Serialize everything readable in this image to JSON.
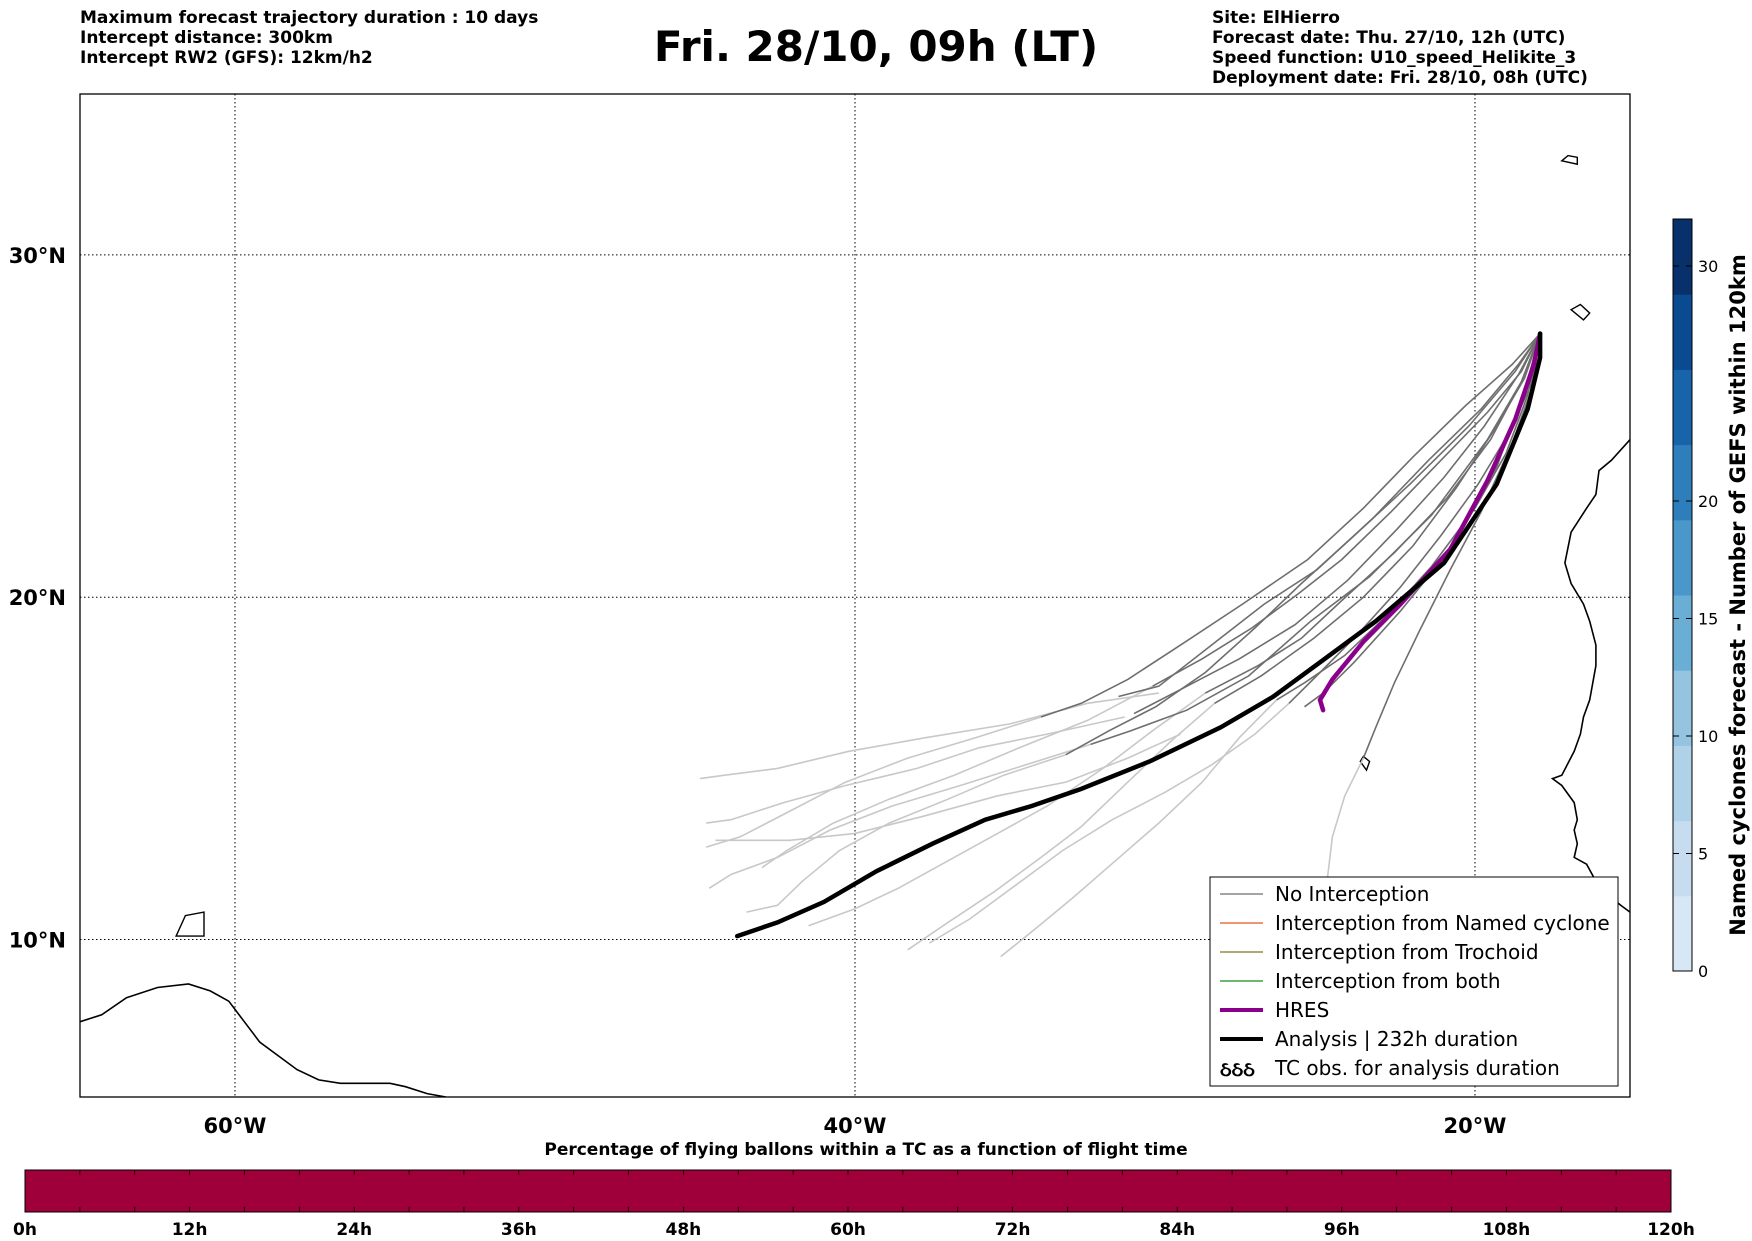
{
  "header": {
    "left_lines": [
      "Maximum forecast trajectory duration : 10 days",
      "Intercept distance: 300km",
      "Intercept RW2 (GFS):  12km/h2"
    ],
    "title": "Fri. 28/10, 09h (LT)",
    "right_lines": [
      "Site: ElHierro",
      "Forecast date: Thu. 27/10, 12h (UTC)",
      "Speed function: U10_speed_Helikite_3",
      "Deployment date: Fri. 28/10, 08h (UTC)"
    ]
  },
  "map": {
    "lon_range": [
      -65,
      -15
    ],
    "lat_range": [
      5.4,
      34.7
    ],
    "lat_ticks": [
      {
        "value": 30,
        "label": "30°N"
      },
      {
        "value": 20,
        "label": "20°N"
      },
      {
        "value": 10,
        "label": "10°N"
      }
    ],
    "lon_ticks": [
      {
        "value": -60,
        "label": "60°W"
      },
      {
        "value": -40,
        "label": "40°W"
      },
      {
        "value": -20,
        "label": "20°W"
      }
    ],
    "grid": true
  },
  "legend": {
    "placement": "bottom-right",
    "items": [
      {
        "label": "No Interception",
        "color": "#6e6e6e",
        "style": "thin"
      },
      {
        "label": "Interception from Named cyclone",
        "color": "#e8561c",
        "style": "thin"
      },
      {
        "label": "Interception from Trochoid",
        "color": "#7b7a1a",
        "style": "thin"
      },
      {
        "label": "Interception from both",
        "color": "#1a8a1a",
        "style": "thin"
      },
      {
        "label": "HRES",
        "color": "#8b008b",
        "style": "thick"
      },
      {
        "label": "Analysis | 232h duration",
        "color": "#000000",
        "style": "thick"
      },
      {
        "label": "TC obs. for analysis duration",
        "color": "#000000",
        "style": "symbol"
      }
    ],
    "symbol_glyph": "ઠઠઠ"
  },
  "colorbar": {
    "label": "Named cyclones forecast - Number of GEFS within 120km",
    "min": 0,
    "max": 32,
    "ticks": [
      0,
      5,
      10,
      15,
      20,
      30
    ],
    "colors": [
      "#d8e7f5",
      "#c7dcef",
      "#b0d2e8",
      "#94c4df",
      "#6aaed6",
      "#4a98c9",
      "#2e7ebc",
      "#1764ab",
      "#0a4a90",
      "#08306b"
    ]
  },
  "flight_bar": {
    "title": "Percentage of flying ballons within a TC as a function of flight time",
    "color": "#a0003a",
    "ticks": [
      "0h",
      "12h",
      "24h",
      "36h",
      "48h",
      "60h",
      "72h",
      "84h",
      "96h",
      "108h",
      "120h"
    ]
  },
  "trajectories": {
    "origin": [
      -17.9,
      27.7
    ],
    "analysis": [
      [
        -17.9,
        27.7
      ],
      [
        -17.9,
        27.0
      ],
      [
        -18.3,
        25.5
      ],
      [
        -19.3,
        23.3
      ],
      [
        -21.0,
        21.0
      ],
      [
        -23.2,
        19.3
      ],
      [
        -25.0,
        18.1
      ],
      [
        -26.5,
        17.1
      ],
      [
        -28.2,
        16.2
      ],
      [
        -30.5,
        15.2
      ],
      [
        -32.7,
        14.4
      ],
      [
        -34.3,
        13.9
      ],
      [
        -35.8,
        13.5
      ],
      [
        -37.5,
        12.8
      ],
      [
        -39.3,
        12.0
      ],
      [
        -41.0,
        11.1
      ],
      [
        -42.5,
        10.5
      ],
      [
        -43.8,
        10.1
      ]
    ],
    "hres": [
      [
        -17.9,
        27.7
      ],
      [
        -18.1,
        26.8
      ],
      [
        -18.7,
        25.2
      ],
      [
        -19.6,
        23.4
      ],
      [
        -20.8,
        21.4
      ],
      [
        -22.4,
        19.8
      ],
      [
        -23.6,
        18.7
      ],
      [
        -24.6,
        17.6
      ],
      [
        -25.0,
        17.0
      ],
      [
        -24.9,
        16.7
      ]
    ],
    "no_interception_dark": [
      [
        [
          -17.9,
          27.7
        ],
        [
          -18.6,
          26.8
        ],
        [
          -19.8,
          25.5
        ],
        [
          -21.5,
          24.0
        ],
        [
          -23.3,
          22.3
        ],
        [
          -25.1,
          20.8
        ],
        [
          -26.8,
          19.8
        ],
        [
          -28.5,
          18.6
        ],
        [
          -30.2,
          17.4
        ],
        [
          -31.5,
          17.1
        ]
      ],
      [
        [
          -17.9,
          27.7
        ],
        [
          -18.5,
          26.3
        ],
        [
          -19.6,
          24.6
        ],
        [
          -21.4,
          22.4
        ],
        [
          -23.4,
          20.6
        ],
        [
          -25.3,
          19.3
        ],
        [
          -27.3,
          17.7
        ],
        [
          -29.3,
          16.7
        ],
        [
          -31.1,
          16.1
        ],
        [
          -32.4,
          15.7
        ]
      ],
      [
        [
          -17.9,
          27.7
        ],
        [
          -18.4,
          26.0
        ],
        [
          -19.3,
          23.8
        ],
        [
          -20.7,
          21.5
        ],
        [
          -22.4,
          19.6
        ],
        [
          -23.9,
          18.1
        ],
        [
          -24.9,
          17.2
        ],
        [
          -25.5,
          16.8
        ]
      ],
      [
        [
          -17.9,
          27.7
        ],
        [
          -18.7,
          26.6
        ],
        [
          -20.2,
          25.0
        ],
        [
          -22.1,
          23.3
        ],
        [
          -23.9,
          21.8
        ],
        [
          -25.6,
          20.4
        ],
        [
          -27.1,
          19.1
        ],
        [
          -28.7,
          17.8
        ],
        [
          -30.3,
          16.8
        ],
        [
          -31.8,
          16.1
        ],
        [
          -33.2,
          15.4
        ]
      ],
      [
        [
          -17.9,
          27.7
        ],
        [
          -18.2,
          26.0
        ],
        [
          -18.8,
          24.5
        ],
        [
          -19.8,
          22.5
        ],
        [
          -20.8,
          20.8
        ],
        [
          -21.8,
          19.0
        ],
        [
          -22.6,
          17.5
        ],
        [
          -23.2,
          16.2
        ],
        [
          -23.6,
          15.3
        ]
      ],
      [
        [
          -17.9,
          27.7
        ],
        [
          -18.5,
          26.3
        ],
        [
          -19.5,
          24.6
        ],
        [
          -20.9,
          22.9
        ],
        [
          -22.6,
          21.3
        ],
        [
          -24.3,
          19.9
        ],
        [
          -25.6,
          18.8
        ],
        [
          -27.0,
          18.0
        ],
        [
          -28.7,
          17.2
        ]
      ],
      [
        [
          -17.9,
          27.7
        ],
        [
          -18.8,
          26.8
        ],
        [
          -20.3,
          25.6
        ],
        [
          -22.0,
          24.1
        ],
        [
          -23.6,
          22.6
        ],
        [
          -25.4,
          21.1
        ],
        [
          -27.5,
          19.8
        ],
        [
          -29.5,
          18.6
        ],
        [
          -31.2,
          17.6
        ],
        [
          -32.7,
          16.9
        ],
        [
          -34.0,
          16.5
        ]
      ],
      [
        [
          -17.9,
          27.7
        ],
        [
          -18.4,
          26.4
        ],
        [
          -19.3,
          25.0
        ],
        [
          -20.6,
          23.2
        ],
        [
          -22.0,
          21.5
        ],
        [
          -23.6,
          20.0
        ],
        [
          -25.2,
          18.8
        ],
        [
          -26.9,
          17.7
        ],
        [
          -28.4,
          16.9
        ]
      ],
      [
        [
          -17.9,
          27.7
        ],
        [
          -18.3,
          25.9
        ],
        [
          -19.0,
          24.2
        ],
        [
          -20.0,
          22.6
        ],
        [
          -21.4,
          20.9
        ],
        [
          -22.8,
          19.5
        ],
        [
          -24.2,
          18.3
        ],
        [
          -25.5,
          17.5
        ],
        [
          -26.4,
          17.0
        ]
      ],
      [
        [
          -17.9,
          27.7
        ],
        [
          -18.6,
          26.5
        ],
        [
          -19.7,
          25.0
        ],
        [
          -21.0,
          23.5
        ],
        [
          -22.5,
          22.0
        ],
        [
          -24.1,
          20.5
        ],
        [
          -25.8,
          19.2
        ],
        [
          -27.6,
          18.2
        ],
        [
          -29.5,
          17.3
        ],
        [
          -31.0,
          16.6
        ]
      ],
      [
        [
          -17.9,
          27.7
        ],
        [
          -18.2,
          26.2
        ],
        [
          -18.9,
          24.8
        ],
        [
          -19.9,
          23.3
        ],
        [
          -21.1,
          21.8
        ],
        [
          -22.4,
          20.3
        ],
        [
          -23.8,
          18.9
        ],
        [
          -25.0,
          17.8
        ],
        [
          -26.0,
          16.9
        ]
      ],
      [
        [
          -17.9,
          27.7
        ],
        [
          -18.5,
          26.6
        ],
        [
          -19.6,
          25.4
        ],
        [
          -21.1,
          24.0
        ],
        [
          -22.7,
          22.5
        ],
        [
          -24.3,
          21.1
        ],
        [
          -25.7,
          20.1
        ],
        [
          -27.2,
          19.1
        ],
        [
          -28.8,
          18.2
        ],
        [
          -30.4,
          17.4
        ]
      ]
    ],
    "no_interception_light": [
      [
        [
          -30.2,
          17.2
        ],
        [
          -32.5,
          16.9
        ],
        [
          -35.0,
          16.3
        ],
        [
          -37.7,
          15.9
        ],
        [
          -40.2,
          15.5
        ],
        [
          -42.5,
          15.0
        ],
        [
          -44.2,
          14.8
        ],
        [
          -45.0,
          14.7
        ]
      ],
      [
        [
          -31.3,
          16.5
        ],
        [
          -33.8,
          16.0
        ],
        [
          -36.0,
          15.6
        ],
        [
          -38.0,
          15.0
        ],
        [
          -40.3,
          14.5
        ],
        [
          -42.3,
          14.0
        ],
        [
          -44.0,
          13.5
        ],
        [
          -44.8,
          13.4
        ]
      ],
      [
        [
          -29.5,
          16.0
        ],
        [
          -31.2,
          15.3
        ],
        [
          -33.2,
          14.6
        ],
        [
          -35.4,
          14.2
        ],
        [
          -37.8,
          13.6
        ],
        [
          -40.0,
          13.1
        ],
        [
          -42.1,
          12.9
        ],
        [
          -44.5,
          12.9
        ]
      ],
      [
        [
          -32.4,
          15.7
        ],
        [
          -34.5,
          15.1
        ],
        [
          -36.6,
          14.5
        ],
        [
          -38.8,
          13.9
        ],
        [
          -40.8,
          13.2
        ],
        [
          -42.5,
          12.4
        ],
        [
          -44.0,
          11.9
        ],
        [
          -44.7,
          11.5
        ]
      ],
      [
        [
          -33.2,
          15.4
        ],
        [
          -35.2,
          14.8
        ],
        [
          -37.0,
          14.1
        ],
        [
          -38.9,
          13.4
        ],
        [
          -40.5,
          12.6
        ],
        [
          -41.7,
          11.7
        ],
        [
          -42.5,
          11.0
        ],
        [
          -43.5,
          10.8
        ]
      ],
      [
        [
          -28.7,
          17.2
        ],
        [
          -30.4,
          16.1
        ],
        [
          -32.0,
          15.0
        ],
        [
          -33.8,
          13.9
        ],
        [
          -35.4,
          13.1
        ],
        [
          -37.0,
          12.3
        ],
        [
          -38.6,
          11.5
        ],
        [
          -40.0,
          10.9
        ],
        [
          -41.5,
          10.4
        ]
      ],
      [
        [
          -28.4,
          16.9
        ],
        [
          -29.8,
          15.8
        ],
        [
          -31.2,
          14.6
        ],
        [
          -32.7,
          13.3
        ],
        [
          -34.0,
          12.4
        ],
        [
          -35.5,
          11.4
        ],
        [
          -37.0,
          10.5
        ],
        [
          -38.3,
          9.7
        ]
      ],
      [
        [
          -26.4,
          17.0
        ],
        [
          -27.6,
          15.9
        ],
        [
          -28.8,
          14.6
        ],
        [
          -30.2,
          13.4
        ],
        [
          -31.6,
          12.3
        ],
        [
          -33.0,
          11.2
        ],
        [
          -34.2,
          10.3
        ],
        [
          -35.3,
          9.5
        ]
      ],
      [
        [
          -26.0,
          16.9
        ],
        [
          -27.1,
          16.0
        ],
        [
          -28.5,
          15.1
        ],
        [
          -30.0,
          14.3
        ],
        [
          -31.7,
          13.5
        ],
        [
          -33.3,
          12.6
        ],
        [
          -34.8,
          11.6
        ],
        [
          -36.3,
          10.6
        ],
        [
          -37.6,
          9.9
        ]
      ],
      [
        [
          -30.4,
          17.4
        ],
        [
          -32.5,
          16.4
        ],
        [
          -34.7,
          15.6
        ],
        [
          -36.8,
          14.8
        ],
        [
          -38.9,
          14.1
        ],
        [
          -40.7,
          13.4
        ],
        [
          -42.2,
          12.6
        ],
        [
          -43.0,
          12.1
        ]
      ],
      [
        [
          -23.6,
          15.3
        ],
        [
          -24.2,
          14.2
        ],
        [
          -24.6,
          13.0
        ],
        [
          -24.8,
          11.5
        ],
        [
          -25.0,
          10.6
        ]
      ],
      [
        [
          -34.0,
          16.5
        ],
        [
          -36.1,
          15.9
        ],
        [
          -38.3,
          15.3
        ],
        [
          -40.3,
          14.6
        ],
        [
          -42.0,
          13.8
        ],
        [
          -43.7,
          13.0
        ],
        [
          -44.8,
          12.7
        ]
      ]
    ]
  },
  "coastlines": {
    "africa": [
      [
        -15,
        24.6
      ],
      [
        -15.6,
        24.0
      ],
      [
        -16.0,
        23.7
      ],
      [
        -16.1,
        23.0
      ],
      [
        -16.4,
        22.6
      ],
      [
        -16.9,
        21.9
      ],
      [
        -17.1,
        21.0
      ],
      [
        -16.9,
        20.4
      ],
      [
        -16.5,
        19.8
      ],
      [
        -16.3,
        19.3
      ],
      [
        -16.1,
        18.6
      ],
      [
        -16.1,
        18.0
      ],
      [
        -16.3,
        17.0
      ],
      [
        -16.5,
        16.5
      ],
      [
        -16.6,
        16.0
      ],
      [
        -16.8,
        15.5
      ],
      [
        -17.2,
        14.8
      ],
      [
        -17.5,
        14.7
      ],
      [
        -17.2,
        14.5
      ],
      [
        -16.8,
        14.0
      ],
      [
        -16.7,
        13.5
      ],
      [
        -16.8,
        13.2
      ],
      [
        -16.7,
        12.8
      ],
      [
        -16.8,
        12.4
      ],
      [
        -16.4,
        12.2
      ],
      [
        -16.1,
        11.7
      ],
      [
        -15.7,
        11.3
      ],
      [
        -15.3,
        11.0
      ],
      [
        -15.0,
        10.8
      ]
    ],
    "south_america": [
      [
        -65,
        7.6
      ],
      [
        -64.3,
        7.8
      ],
      [
        -63.5,
        8.3
      ],
      [
        -62.5,
        8.6
      ],
      [
        -61.5,
        8.7
      ],
      [
        -60.8,
        8.5
      ],
      [
        -60.2,
        8.2
      ],
      [
        -59.7,
        7.6
      ],
      [
        -59.2,
        7.0
      ],
      [
        -58.6,
        6.6
      ],
      [
        -58.0,
        6.2
      ],
      [
        -57.3,
        5.9
      ],
      [
        -56.6,
        5.8
      ],
      [
        -55.8,
        5.8
      ],
      [
        -55.0,
        5.8
      ],
      [
        -54.5,
        5.7
      ],
      [
        -53.8,
        5.5
      ],
      [
        -53.2,
        5.4
      ]
    ],
    "islands": [
      {
        "name": "canary-islands",
        "points": [
          [
            -16.9,
            28.4
          ],
          [
            -16.5,
            28.1
          ],
          [
            -16.3,
            28.3
          ],
          [
            -16.6,
            28.55
          ],
          [
            -16.9,
            28.4
          ]
        ]
      },
      {
        "name": "cape-verde",
        "points": [
          [
            -23.7,
            15.2
          ],
          [
            -23.5,
            14.95
          ],
          [
            -23.4,
            15.2
          ],
          [
            -23.6,
            15.35
          ],
          [
            -23.7,
            15.2
          ]
        ]
      },
      {
        "name": "madeira",
        "points": [
          [
            -17.2,
            32.75
          ],
          [
            -16.7,
            32.65
          ],
          [
            -16.7,
            32.85
          ],
          [
            -17.0,
            32.9
          ],
          [
            -17.2,
            32.75
          ]
        ]
      },
      {
        "name": "trinidad",
        "points": [
          [
            -61.9,
            10.1
          ],
          [
            -61.0,
            10.1
          ],
          [
            -61.0,
            10.8
          ],
          [
            -61.6,
            10.7
          ],
          [
            -61.9,
            10.1
          ]
        ]
      }
    ]
  }
}
